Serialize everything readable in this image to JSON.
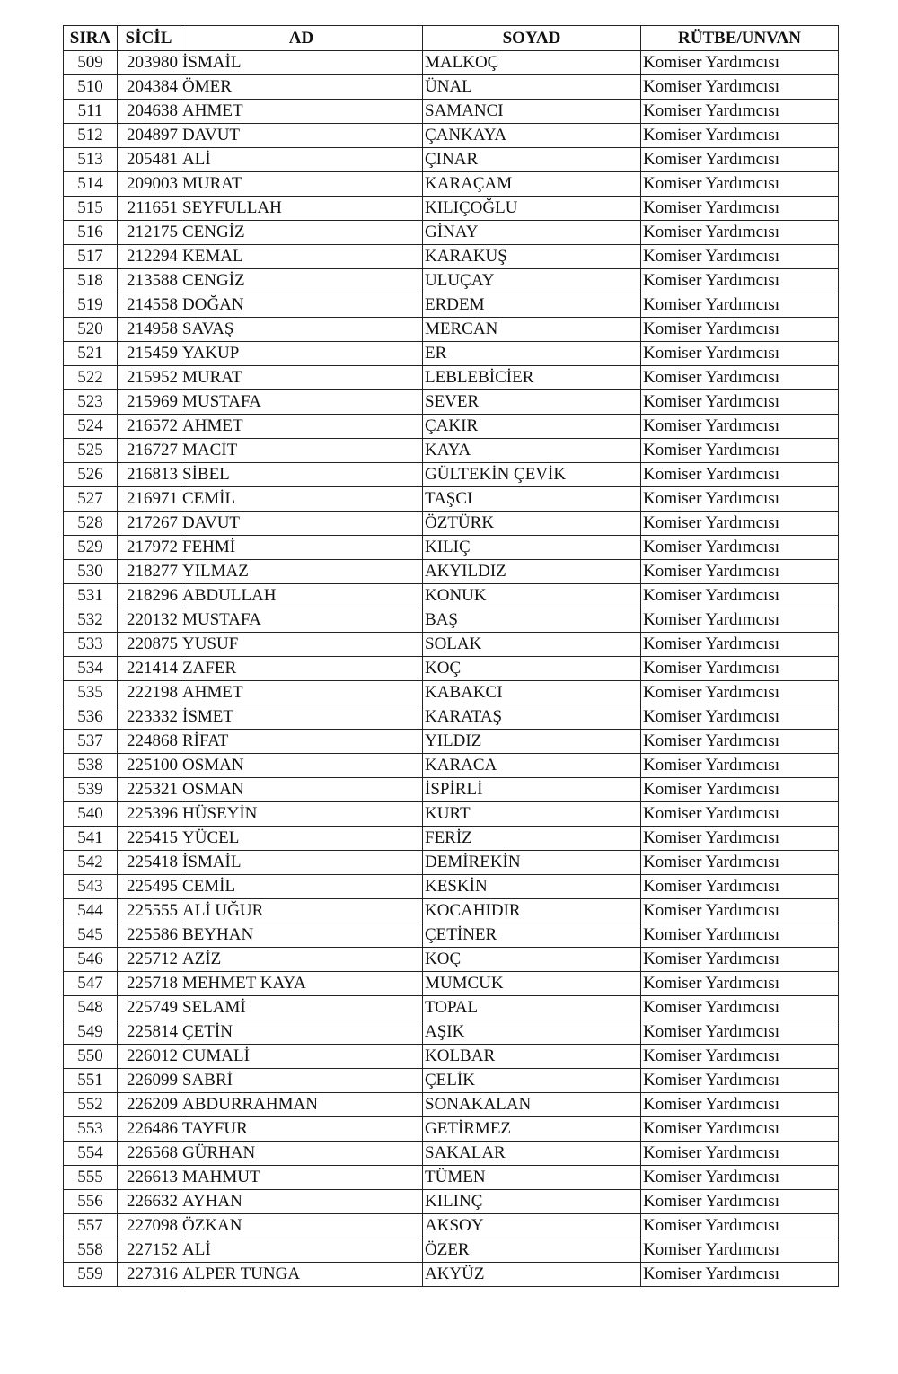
{
  "table": {
    "headers": [
      "SIRA",
      "SİCİL",
      "AD",
      "SOYAD",
      "RÜTBE/UNVAN"
    ],
    "rows": [
      [
        "509",
        "203980",
        "İSMAİL",
        "MALKOÇ",
        "Komiser Yardımcısı"
      ],
      [
        "510",
        "204384",
        "ÖMER",
        "ÜNAL",
        "Komiser Yardımcısı"
      ],
      [
        "511",
        "204638",
        "AHMET",
        "SAMANCI",
        "Komiser Yardımcısı"
      ],
      [
        "512",
        "204897",
        "DAVUT",
        "ÇANKAYA",
        "Komiser Yardımcısı"
      ],
      [
        "513",
        "205481",
        "ALİ",
        "ÇINAR",
        "Komiser Yardımcısı"
      ],
      [
        "514",
        "209003",
        "MURAT",
        "KARAÇAM",
        "Komiser Yardımcısı"
      ],
      [
        "515",
        "211651",
        "SEYFULLAH",
        "KILIÇOĞLU",
        "Komiser Yardımcısı"
      ],
      [
        "516",
        "212175",
        "CENGİZ",
        "GİNAY",
        "Komiser Yardımcısı"
      ],
      [
        "517",
        "212294",
        "KEMAL",
        "KARAKUŞ",
        "Komiser Yardımcısı"
      ],
      [
        "518",
        "213588",
        "CENGİZ",
        "ULUÇAY",
        "Komiser Yardımcısı"
      ],
      [
        "519",
        "214558",
        "DOĞAN",
        "ERDEM",
        "Komiser Yardımcısı"
      ],
      [
        "520",
        "214958",
        "SAVAŞ",
        "MERCAN",
        "Komiser Yardımcısı"
      ],
      [
        "521",
        "215459",
        "YAKUP",
        "ER",
        "Komiser Yardımcısı"
      ],
      [
        "522",
        "215952",
        "MURAT",
        "LEBLEBİCİER",
        "Komiser Yardımcısı"
      ],
      [
        "523",
        "215969",
        "MUSTAFA",
        "SEVER",
        "Komiser Yardımcısı"
      ],
      [
        "524",
        "216572",
        "AHMET",
        "ÇAKIR",
        "Komiser Yardımcısı"
      ],
      [
        "525",
        "216727",
        "MACİT",
        "KAYA",
        "Komiser Yardımcısı"
      ],
      [
        "526",
        "216813",
        "SİBEL",
        "GÜLTEKİN ÇEVİK",
        "Komiser Yardımcısı"
      ],
      [
        "527",
        "216971",
        "CEMİL",
        "TAŞCI",
        "Komiser Yardımcısı"
      ],
      [
        "528",
        "217267",
        "DAVUT",
        "ÖZTÜRK",
        "Komiser Yardımcısı"
      ],
      [
        "529",
        "217972",
        "FEHMİ",
        "KILIÇ",
        "Komiser Yardımcısı"
      ],
      [
        "530",
        "218277",
        "YILMAZ",
        "AKYILDIZ",
        "Komiser Yardımcısı"
      ],
      [
        "531",
        "218296",
        "ABDULLAH",
        "KONUK",
        "Komiser Yardımcısı"
      ],
      [
        "532",
        "220132",
        "MUSTAFA",
        "BAŞ",
        "Komiser Yardımcısı"
      ],
      [
        "533",
        "220875",
        "YUSUF",
        "SOLAK",
        "Komiser Yardımcısı"
      ],
      [
        "534",
        "221414",
        "ZAFER",
        "KOÇ",
        "Komiser Yardımcısı"
      ],
      [
        "535",
        "222198",
        "AHMET",
        "KABAKCI",
        "Komiser Yardımcısı"
      ],
      [
        "536",
        "223332",
        "İSMET",
        "KARATAŞ",
        "Komiser Yardımcısı"
      ],
      [
        "537",
        "224868",
        "RİFAT",
        "YILDIZ",
        "Komiser Yardımcısı"
      ],
      [
        "538",
        "225100",
        "OSMAN",
        "KARACA",
        "Komiser Yardımcısı"
      ],
      [
        "539",
        "225321",
        "OSMAN",
        "İSPİRLİ",
        "Komiser Yardımcısı"
      ],
      [
        "540",
        "225396",
        "HÜSEYİN",
        "KURT",
        "Komiser Yardımcısı"
      ],
      [
        "541",
        "225415",
        "YÜCEL",
        "FERİZ",
        "Komiser Yardımcısı"
      ],
      [
        "542",
        "225418",
        "İSMAİL",
        "DEMİREKİN",
        "Komiser Yardımcısı"
      ],
      [
        "543",
        "225495",
        "CEMİL",
        "KESKİN",
        "Komiser Yardımcısı"
      ],
      [
        "544",
        "225555",
        "ALİ UĞUR",
        "KOCAHIDIR",
        "Komiser Yardımcısı"
      ],
      [
        "545",
        "225586",
        "BEYHAN",
        "ÇETİNER",
        "Komiser Yardımcısı"
      ],
      [
        "546",
        "225712",
        "AZİZ",
        "KOÇ",
        "Komiser Yardımcısı"
      ],
      [
        "547",
        "225718",
        "MEHMET KAYA",
        "MUMCUK",
        "Komiser Yardımcısı"
      ],
      [
        "548",
        "225749",
        "SELAMİ",
        "TOPAL",
        "Komiser Yardımcısı"
      ],
      [
        "549",
        "225814",
        "ÇETİN",
        "AŞIK",
        "Komiser Yardımcısı"
      ],
      [
        "550",
        "226012",
        "CUMALİ",
        "KOLBAR",
        "Komiser Yardımcısı"
      ],
      [
        "551",
        "226099",
        "SABRİ",
        "ÇELİK",
        "Komiser Yardımcısı"
      ],
      [
        "552",
        "226209",
        "ABDURRAHMAN",
        "SONAKALAN",
        "Komiser Yardımcısı"
      ],
      [
        "553",
        "226486",
        "TAYFUR",
        "GETİRMEZ",
        "Komiser Yardımcısı"
      ],
      [
        "554",
        "226568",
        "GÜRHAN",
        "SAKALAR",
        "Komiser Yardımcısı"
      ],
      [
        "555",
        "226613",
        "MAHMUT",
        "TÜMEN",
        "Komiser Yardımcısı"
      ],
      [
        "556",
        "226632",
        "AYHAN",
        "KILINÇ",
        "Komiser Yardımcısı"
      ],
      [
        "557",
        "227098",
        "ÖZKAN",
        "AKSOY",
        "Komiser Yardımcısı"
      ],
      [
        "558",
        "227152",
        "ALİ",
        "ÖZER",
        "Komiser Yardımcısı"
      ],
      [
        "559",
        "227316",
        "ALPER TUNGA",
        "AKYÜZ",
        "Komiser Yardımcısı"
      ]
    ]
  }
}
